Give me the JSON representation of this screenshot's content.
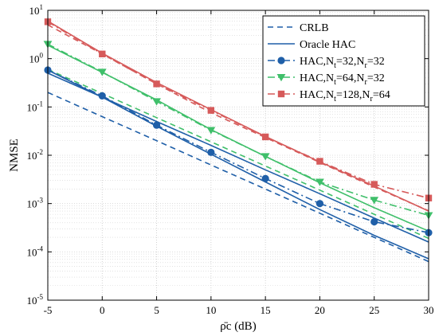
{
  "chart_data": {
    "type": "line",
    "xlabel": "ρ̄c (dB)",
    "ylabel": "NMSE",
    "yscale": "log",
    "xlim": [
      -5,
      30
    ],
    "ylim": [
      1e-05,
      10
    ],
    "grid": true,
    "legend_position": "top-right",
    "x": [
      -5,
      0,
      5,
      10,
      15,
      20,
      25,
      30
    ],
    "x_tick_labels": [
      "-5",
      "0",
      "5",
      "10",
      "15",
      "20",
      "25",
      "30"
    ],
    "y_tick_labels": [
      {
        "base": "10",
        "exp": "-5",
        "value": 1e-05
      },
      {
        "base": "10",
        "exp": "-4",
        "value": 0.0001
      },
      {
        "base": "10",
        "exp": "-3",
        "value": 0.001
      },
      {
        "base": "10",
        "exp": "-2",
        "value": 0.01
      },
      {
        "base": "10",
        "exp": "-1",
        "value": 0.1
      },
      {
        "base": "10",
        "exp": "0",
        "value": 1
      },
      {
        "base": "10",
        "exp": "1",
        "value": 10
      }
    ],
    "series": [
      {
        "name": "CRLB",
        "legend_parts": [
          [
            "CRLB",
            ""
          ]
        ],
        "color": "#1f5fa8",
        "dash": "7,5",
        "marker": "none",
        "values": [
          0.2,
          0.063,
          0.02,
          0.0063,
          0.002,
          0.00063,
          0.0002,
          6.3e-05
        ]
      },
      {
        "name": "Oracle HAC",
        "legend_parts": [
          [
            "Oracle HAC",
            ""
          ]
        ],
        "color": "#1f5fa8",
        "dash": "",
        "marker": "none",
        "values": [
          0.5,
          0.16,
          0.05,
          0.016,
          0.005,
          0.0016,
          0.0005,
          0.00016
        ]
      },
      {
        "name": "HAC,Nt=32,Nr=32",
        "legend_parts": [
          [
            "HAC,N",
            ""
          ],
          [
            "t",
            "sub"
          ],
          [
            "=32,N",
            ""
          ],
          [
            "r",
            "sub"
          ],
          [
            "=32",
            ""
          ]
        ],
        "color": "#1f5fa8",
        "dash": "9,4,2,4",
        "marker": "circle",
        "values": [
          0.58,
          0.17,
          0.042,
          0.0115,
          0.0033,
          0.001,
          0.00042,
          0.00025
        ]
      },
      {
        "name": "HAC,Nt=64,Nr=32",
        "legend_parts": [
          [
            "HAC,N",
            ""
          ],
          [
            "t",
            "sub"
          ],
          [
            "=64,N",
            ""
          ],
          [
            "r",
            "sub"
          ],
          [
            "=32",
            ""
          ]
        ],
        "color": "#3fbf6a",
        "dash": "9,4,2,4",
        "marker": "triangle-down",
        "values": [
          2.0,
          0.53,
          0.13,
          0.033,
          0.0095,
          0.0028,
          0.00118,
          0.00057
        ]
      },
      {
        "name": "HAC,Nt=128,Nr=64",
        "legend_parts": [
          [
            "HAC,N",
            ""
          ],
          [
            "t",
            "sub"
          ],
          [
            "=128,N",
            ""
          ],
          [
            "r",
            "sub"
          ],
          [
            "=64",
            ""
          ]
        ],
        "color": "#d65a5a",
        "dash": "9,4,2,4",
        "marker": "square",
        "values": [
          5.8,
          1.25,
          0.3,
          0.085,
          0.024,
          0.0075,
          0.0025,
          0.0013
        ]
      }
    ],
    "reference_lines": [
      {
        "color": "#3fbf6a",
        "dash": "7,5",
        "values": [
          0.6,
          0.19,
          0.06,
          0.019,
          0.006,
          0.0019,
          0.0006,
          0.00019
        ]
      },
      {
        "color": "#3fbf6a",
        "dash": "",
        "values": [
          1.9,
          0.52,
          0.14,
          0.034,
          0.0095,
          0.0027,
          0.00082,
          0.00027
        ]
      },
      {
        "color": "#d65a5a",
        "dash": "7,5",
        "values": [
          5.0,
          1.25,
          0.3,
          0.076,
          0.0233,
          0.0071,
          0.0022,
          0.00071
        ]
      },
      {
        "color": "#d65a5a",
        "dash": "",
        "values": [
          6.0,
          1.3,
          0.32,
          0.088,
          0.0245,
          0.0073,
          0.0023,
          0.0007
        ]
      },
      {
        "color": "#1f5fa8",
        "dash": "",
        "values": [
          0.58,
          0.16,
          0.04,
          0.0105,
          0.0028,
          0.00075,
          0.00022,
          7.2e-05
        ]
      }
    ]
  }
}
